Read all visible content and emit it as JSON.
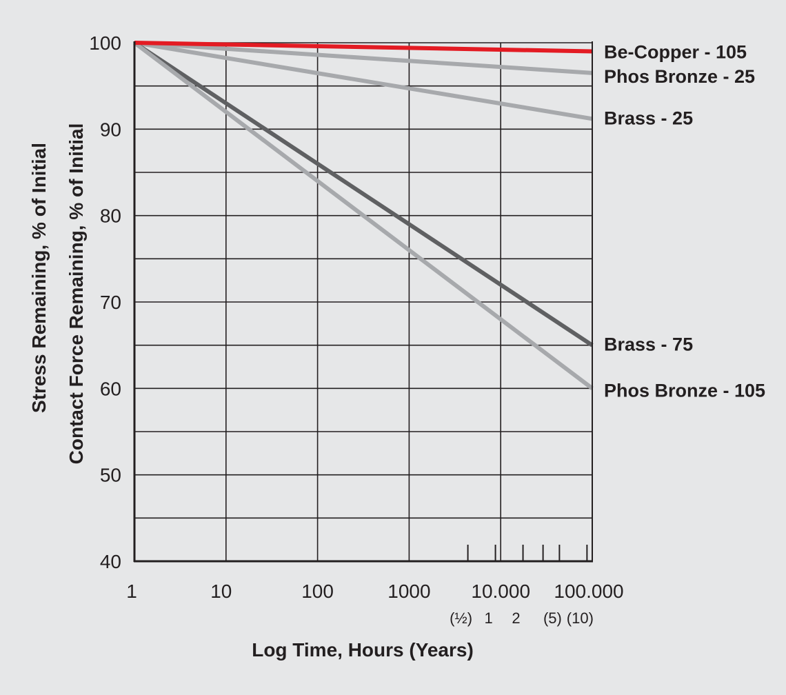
{
  "chart_data": {
    "type": "line",
    "x_scale": "log",
    "xlabel": "Log Time, Hours (Years)",
    "ylabel_primary": "Stress Remaining, % of Initial",
    "ylabel_secondary": "Contact Force Remaining, % of Initial",
    "xlim": [
      1,
      100000
    ],
    "ylim": [
      40,
      100
    ],
    "grid": true,
    "x_ticks": [
      {
        "value": 1,
        "label": "1"
      },
      {
        "value": 10,
        "label": "10"
      },
      {
        "value": 100,
        "label": "100"
      },
      {
        "value": 1000,
        "label": "1000"
      },
      {
        "value": 10000,
        "label": "10.000"
      },
      {
        "value": 100000,
        "label": "100.000"
      }
    ],
    "y_ticks": [
      {
        "value": 100,
        "label": "100"
      },
      {
        "value": 90,
        "label": "90"
      },
      {
        "value": 80,
        "label": "80"
      },
      {
        "value": 70,
        "label": "70"
      },
      {
        "value": 60,
        "label": "60"
      },
      {
        "value": 50,
        "label": "50"
      },
      {
        "value": 40,
        "label": "40"
      }
    ],
    "y_minor_grid": [
      95,
      85,
      75,
      65,
      55,
      45
    ],
    "year_ticks": [
      {
        "hours": 4380,
        "label": "(½)"
      },
      {
        "hours": 8760,
        "label": "1"
      },
      {
        "hours": 17520,
        "label": "2"
      },
      {
        "hours": 43800,
        "label": "(5)"
      },
      {
        "hours": 87600,
        "label": "(10)"
      }
    ],
    "series": [
      {
        "name": "Be-Copper - 105",
        "color": "#e31b23",
        "x": [
          1,
          100000
        ],
        "values": [
          100,
          99
        ]
      },
      {
        "name": "Phos Bronze - 25",
        "color": "#a7a9ac",
        "x": [
          1,
          100000
        ],
        "values": [
          100,
          96.5
        ]
      },
      {
        "name": "Brass - 25",
        "color": "#a7a9ac",
        "x": [
          1,
          100000
        ],
        "values": [
          100,
          91.2
        ]
      },
      {
        "name": "Brass - 75",
        "color": "#5f6062",
        "x": [
          1,
          100000
        ],
        "values": [
          100,
          65
        ]
      },
      {
        "name": "Phos Bronze - 105",
        "color": "#a7a9ac",
        "x": [
          1,
          100000
        ],
        "values": [
          100,
          60
        ]
      }
    ]
  }
}
